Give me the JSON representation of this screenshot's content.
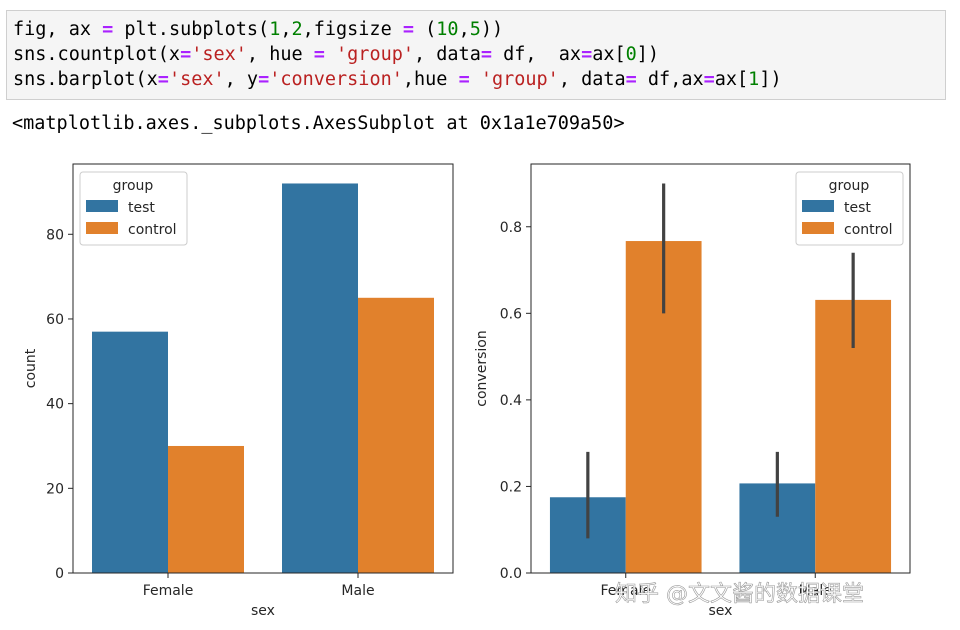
{
  "code": {
    "line1": [
      "fig, ax ",
      "=",
      " plt.subplots(",
      "1",
      ",",
      "2",
      ",figsize ",
      "=",
      " (",
      "10",
      ",",
      "5",
      "))"
    ],
    "line2": [
      "sns.countplot(x",
      "=",
      "'sex'",
      ", hue ",
      "=",
      " ",
      "'group'",
      ", data",
      "=",
      " df,  ax",
      "=",
      "ax[",
      "0",
      "])"
    ],
    "line3": [
      "sns.barplot(x",
      "=",
      "'sex'",
      ", y",
      "=",
      "'conversion'",
      ",hue ",
      "=",
      " ",
      "'group'",
      ", data",
      "=",
      " df,ax",
      "=",
      "ax[",
      "1",
      "])"
    ]
  },
  "output": "<matplotlib.axes._subplots.AxesSubplot at 0x1a1e709a50>",
  "watermark": "知乎 @文文酱的数据课堂",
  "colors": {
    "test": "#3274a1",
    "control": "#e1812c",
    "errbar": "#424242"
  },
  "chart_data": [
    {
      "type": "bar",
      "categories": [
        "Female",
        "Male"
      ],
      "series": [
        {
          "name": "test",
          "values": [
            57,
            92
          ]
        },
        {
          "name": "control",
          "values": [
            30,
            65
          ]
        }
      ],
      "xlabel": "sex",
      "ylabel": "count",
      "ylim": [
        0,
        96.6
      ],
      "yticks": [
        0,
        20,
        40,
        60,
        80
      ],
      "legend": {
        "title": "group",
        "placement": "upper-left"
      },
      "grid": false
    },
    {
      "type": "bar",
      "categories": [
        "Female",
        "Male"
      ],
      "series": [
        {
          "name": "test",
          "values": [
            0.175,
            0.207
          ],
          "err_low": [
            0.08,
            0.13
          ],
          "err_high": [
            0.28,
            0.28
          ]
        },
        {
          "name": "control",
          "values": [
            0.767,
            0.631
          ],
          "err_low": [
            0.6,
            0.52
          ],
          "err_high": [
            0.9,
            0.74
          ]
        }
      ],
      "xlabel": "sex",
      "ylabel": "conversion",
      "ylim": [
        0,
        0.945
      ],
      "yticks": [
        0.0,
        0.2,
        0.4,
        0.6,
        0.8
      ],
      "legend": {
        "title": "group",
        "placement": "upper-right"
      },
      "grid": false
    }
  ]
}
